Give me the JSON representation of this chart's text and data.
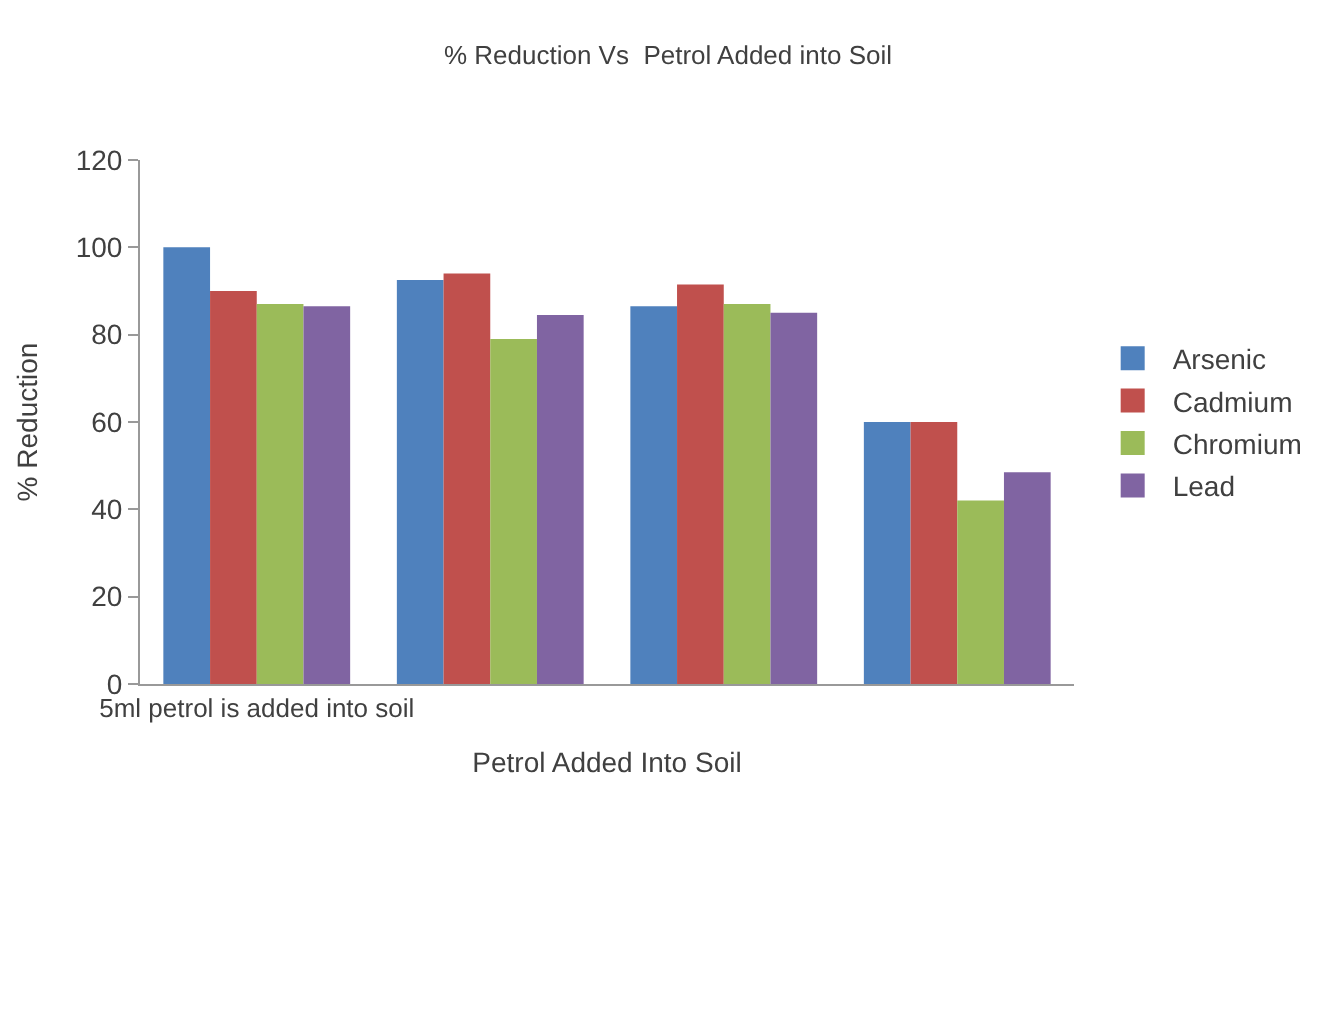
{
  "chart_data": {
    "type": "bar",
    "title": "% Reduction Vs  Petrol Added into Soil",
    "xlabel": "Petrol Added Into Soil",
    "ylabel": "% Reduction",
    "categories": [
      "5ml petrol is added into soil",
      null,
      null,
      null
    ],
    "series": [
      {
        "name": "Arsenic",
        "color": "#4f81bd",
        "values": [
          100,
          92.5,
          86.5,
          60
        ]
      },
      {
        "name": "Cadmium",
        "color": "#c0504d",
        "values": [
          90,
          94,
          91.5,
          60
        ]
      },
      {
        "name": "Chromium",
        "color": "#9bbb59",
        "values": [
          87,
          79,
          87,
          42
        ]
      },
      {
        "name": "Lead",
        "color": "#8064a2",
        "values": [
          86.5,
          84.5,
          85,
          48.5
        ]
      }
    ],
    "ylim": [
      0,
      120
    ],
    "yticks": [
      0,
      20,
      40,
      60,
      80,
      100,
      120
    ],
    "legend": "right"
  }
}
